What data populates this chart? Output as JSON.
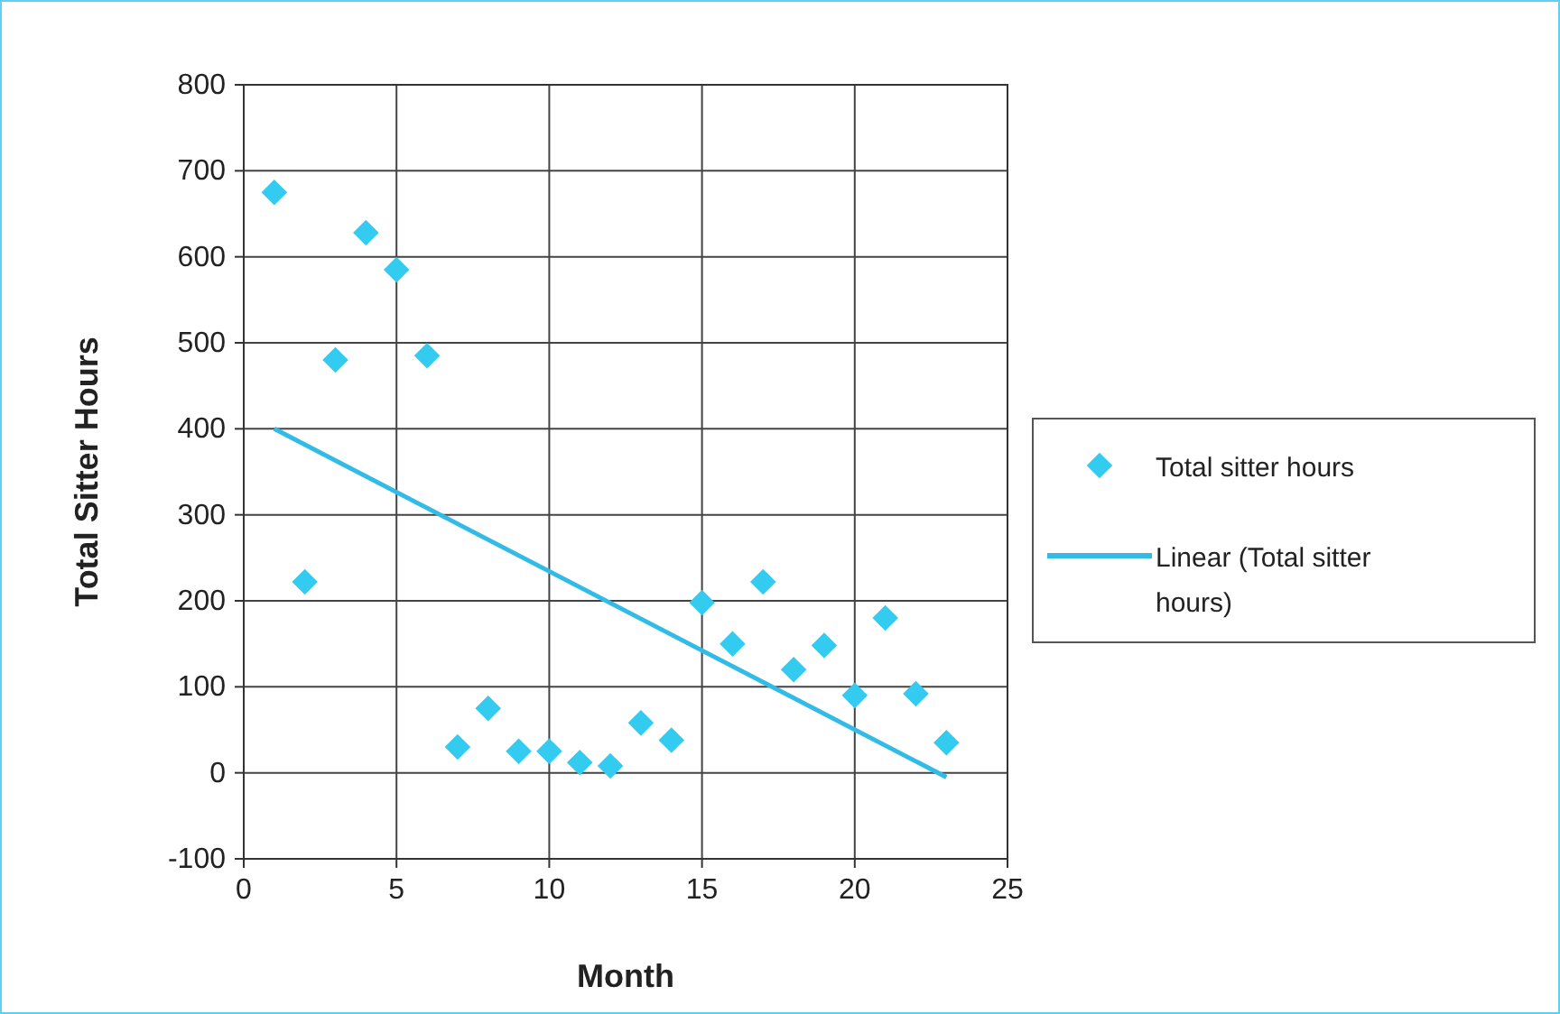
{
  "chart_data": {
    "type": "scatter",
    "xlabel": "Month",
    "ylabel": "Total Sitter Hours",
    "xlim": [
      0,
      25
    ],
    "xticks": [
      0,
      5,
      10,
      15,
      20,
      25
    ],
    "ylim": [
      -100,
      800
    ],
    "yticks": [
      -100,
      0,
      100,
      200,
      300,
      400,
      500,
      600,
      700,
      800
    ],
    "grid": true,
    "legend": "right",
    "marker": "diamond",
    "series": [
      {
        "name": "Total sitter hours",
        "color": "#33ccf0",
        "x": [
          1,
          2,
          3,
          4,
          5,
          6,
          7,
          8,
          9,
          10,
          11,
          12,
          13,
          14,
          15,
          16,
          17,
          18,
          19,
          20,
          21,
          22,
          23
        ],
        "values": [
          675,
          222,
          480,
          628,
          585,
          485,
          30,
          75,
          25,
          25,
          12,
          8,
          58,
          38,
          198,
          150,
          222,
          120,
          148,
          90,
          180,
          92,
          35
        ]
      },
      {
        "name": "Linear (Total sitter hours)",
        "type": "line",
        "color": "#33bbe8",
        "line_style": "solid",
        "marker": "none",
        "x": [
          1,
          23
        ],
        "values": [
          400,
          -5
        ]
      }
    ]
  }
}
